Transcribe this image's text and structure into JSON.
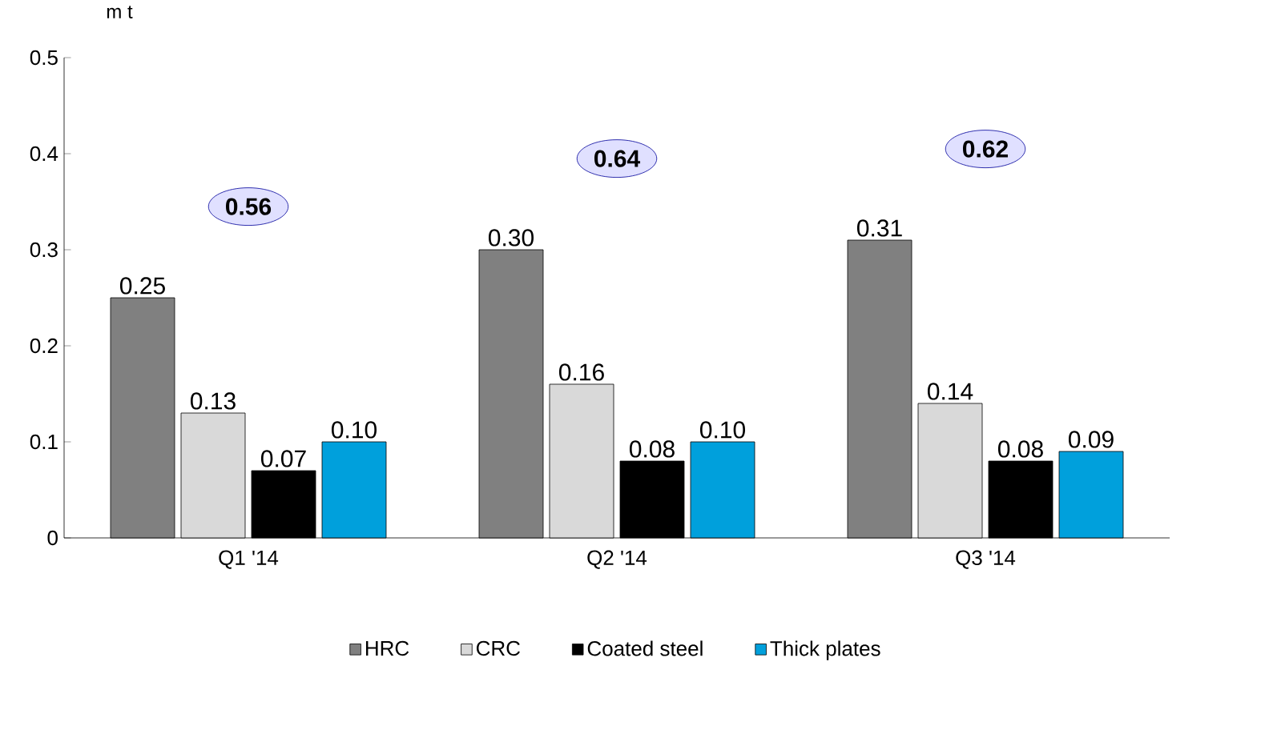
{
  "chart_data": {
    "type": "bar",
    "ylabel": "m t",
    "categories": [
      "Q1 '14",
      "Q2 '14",
      "Q3 '14"
    ],
    "series": [
      {
        "name": "HRC",
        "color": "#808080",
        "values": [
          0.25,
          0.3,
          0.31
        ],
        "value_labels": [
          "0.25",
          "0.30",
          "0.31"
        ]
      },
      {
        "name": "CRC",
        "color": "#d9d9d9",
        "values": [
          0.13,
          0.16,
          0.14
        ],
        "value_labels": [
          "0.13",
          "0.16",
          "0.14"
        ]
      },
      {
        "name": "Coated steel",
        "color": "#000000",
        "values": [
          0.07,
          0.08,
          0.08
        ],
        "value_labels": [
          "0.07",
          "0.08",
          "0.08"
        ]
      },
      {
        "name": "Thick plates",
        "color": "#00a0dc",
        "values": [
          0.1,
          0.1,
          0.09
        ],
        "value_labels": [
          "0.10",
          "0.10",
          "0.09"
        ]
      }
    ],
    "ylim": [
      0,
      0.5
    ],
    "yticks": [
      0,
      0.1,
      0.2,
      0.3,
      0.4,
      0.5
    ],
    "grid": false,
    "legend": "bottom",
    "annotations": [
      "0.56",
      "0.64",
      "0.62"
    ]
  }
}
